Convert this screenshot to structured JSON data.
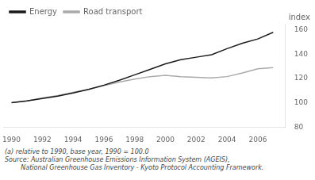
{
  "chart_data": {
    "type": "line",
    "x": [
      1990,
      1991,
      1992,
      1993,
      1994,
      1995,
      1996,
      1997,
      1998,
      1999,
      2000,
      2001,
      2002,
      2003,
      2004,
      2005,
      2006,
      2007
    ],
    "series": [
      {
        "name": "Energy",
        "color": "#1a1a1a",
        "values": [
          100.0,
          101.5,
          103.5,
          105.5,
          108.0,
          111.0,
          114.5,
          118.5,
          123.0,
          127.5,
          132.0,
          135.5,
          137.5,
          139.5,
          144.5,
          149.0,
          152.5,
          158.0
        ]
      },
      {
        "name": "Road transport",
        "color": "#aaaaaa",
        "values": [
          100.0,
          101.5,
          104.0,
          106.0,
          108.5,
          111.0,
          114.0,
          117.0,
          119.5,
          121.5,
          122.5,
          121.5,
          121.0,
          120.5,
          121.5,
          124.5,
          128.0,
          129.0
        ]
      }
    ],
    "xlim": [
      1989.5,
      2007.8
    ],
    "xticks": [
      1990,
      1992,
      1994,
      1996,
      1998,
      2000,
      2002,
      2004,
      2006
    ],
    "ylim": [
      80,
      165
    ],
    "yticks": [
      80,
      100,
      120,
      140,
      160
    ],
    "ylabel": "index",
    "annotations": [
      "(a) relative to 1990, base year, 1990 = 100.0",
      "Source: Australian Greenhouse Emissions Information System (AGEIS),",
      "        National Greenhouse Gas Inventory - Kyoto Protocol Accounting Framework."
    ],
    "grid": false,
    "legend": "upper left"
  }
}
